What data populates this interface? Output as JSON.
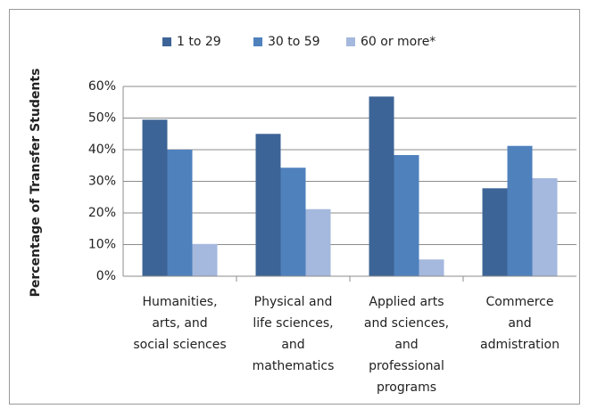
{
  "chart_data": {
    "type": "bar",
    "y_label": "Percentage of Transfer Students",
    "categories": [
      [
        "Humanities,",
        "arts, and",
        "social sciences"
      ],
      [
        "Physical and",
        "life sciences,",
        "and",
        "mathematics"
      ],
      [
        "Applied arts",
        "and sciences,",
        "and",
        "professional",
        "programs"
      ],
      [
        "Commerce",
        "and",
        "admistration"
      ]
    ],
    "series": [
      {
        "name": "1 to 29",
        "color": "#3d6496",
        "values": [
          49.5,
          45,
          56.8,
          27.8
        ]
      },
      {
        "name": "30 to 59",
        "color": "#4f81bd",
        "values": [
          40,
          34.3,
          38.3,
          41.2
        ]
      },
      {
        "name": "60 or more*",
        "color": "#a5b8dd",
        "values": [
          10.2,
          21.2,
          5.3,
          31
        ]
      }
    ],
    "ylim": [
      0,
      60
    ],
    "yticks": [
      {
        "value": 0,
        "label": "0%"
      },
      {
        "value": 10,
        "label": "10%"
      },
      {
        "value": 20,
        "label": "20%"
      },
      {
        "value": 30,
        "label": "30%"
      },
      {
        "value": 40,
        "label": "40%"
      },
      {
        "value": 50,
        "label": "50%"
      },
      {
        "value": 60,
        "label": "60%"
      }
    ],
    "grid": true,
    "legend": "top"
  }
}
